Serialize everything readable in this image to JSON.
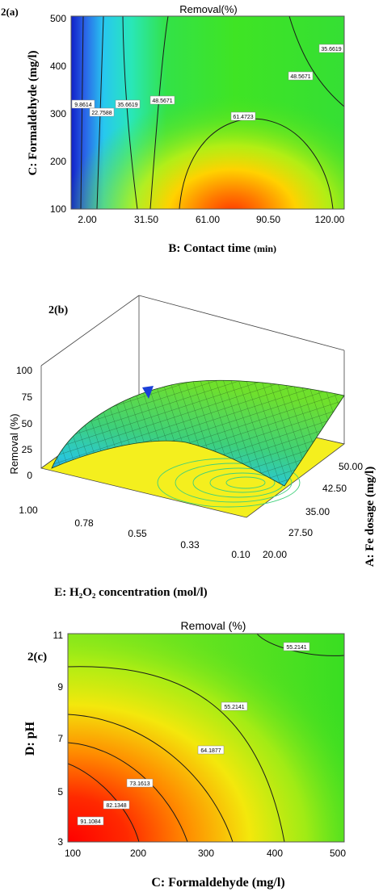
{
  "colors": {
    "blue": "#1a2bd6",
    "cyan": "#27d3f0",
    "green": "#2fe030",
    "yellow": "#f2ee10",
    "red": "#ff1a00",
    "plane_yellow": "#f4ef1e"
  },
  "panels": {
    "a": {
      "label": "2(a)",
      "title": "Removal(%)",
      "xlabel": "B: Contact time",
      "xunit": "(min)",
      "ylabel": "C: Formaldehyde (mg/l)",
      "xticks": [
        "2.00",
        "31.50",
        "61.00",
        "90.50",
        "120.00"
      ],
      "yticks": [
        "100",
        "200",
        "300",
        "400",
        "500"
      ],
      "contour_labels": [
        "9.8614",
        "22.7588",
        "35.6619",
        "48.5671",
        "61.4723",
        "48.5671",
        "35.6619"
      ]
    },
    "b": {
      "label": "2(b)",
      "zlabel": "Removal (%)",
      "xlabel": "E: H₂O₂ concentration (mol/l)",
      "ylabel": "A: Fe dosage (mg/l)",
      "zticks": [
        "100",
        "75",
        "50",
        "25",
        "0"
      ],
      "xticks": [
        "1.00",
        "0.78",
        "0.55",
        "0.33",
        "0.10"
      ],
      "yticks": [
        "20.00",
        "27.50",
        "35.00",
        "42.50",
        "50.00"
      ]
    },
    "c": {
      "label": "2(c)",
      "title": "Removal (%)",
      "xlabel": "C: Formaldehyde (mg/l)",
      "ylabel": "D: pH",
      "xticks": [
        "100",
        "200",
        "300",
        "400",
        "500"
      ],
      "yticks": [
        "3",
        "5",
        "7",
        "9",
        "11"
      ],
      "contour_labels": [
        "91.1084",
        "82.1348",
        "73.1613",
        "64.1877",
        "55.2141",
        "55.2141"
      ]
    }
  },
  "chart_data": [
    {
      "type": "heatmap",
      "title": "Removal(%)",
      "xlabel": "B: Contact time (min)",
      "ylabel": "C: Formaldehyde (mg/l)",
      "xlim": [
        2,
        120
      ],
      "ylim": [
        100,
        500
      ],
      "contour_levels": [
        9.8614,
        22.7588,
        35.6619,
        48.5671,
        61.4723
      ],
      "peak": {
        "x": 72,
        "y": 100
      }
    },
    {
      "type": "surface",
      "zlabel": "Removal (%)",
      "xlabel": "E: H2O2 concentration (mol/l)",
      "ylabel": "A: Fe dosage (mg/l)",
      "xlim": [
        0.1,
        1.0
      ],
      "ylim": [
        20,
        50
      ],
      "zlim": [
        0,
        100
      ]
    },
    {
      "type": "heatmap",
      "title": "Removal (%)",
      "xlabel": "C: Formaldehyde (mg/l)",
      "ylabel": "D: pH",
      "xlim": [
        100,
        500
      ],
      "ylim": [
        3,
        11
      ],
      "contour_levels": [
        91.1084,
        82.1348,
        73.1613,
        64.1877,
        55.2141
      ],
      "peak": {
        "x": 100,
        "y": 3
      }
    }
  ]
}
